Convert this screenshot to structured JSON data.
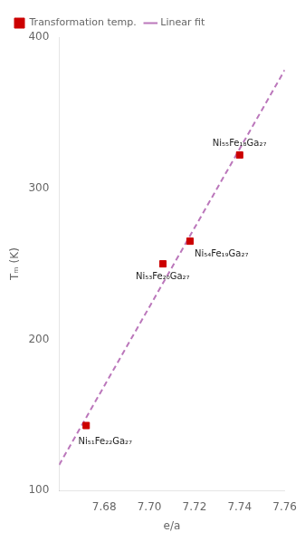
{
  "chart_data": {
    "type": "scatter",
    "xlabel": "e/a",
    "ylabel": "Tₘ (K)",
    "series": [
      {
        "name": "Transformation temp.",
        "type": "scatter",
        "color": "#cc0000",
        "marker": "square",
        "x": [
          7.672,
          7.706,
          7.718,
          7.74
        ],
        "values": [
          143,
          250,
          265,
          322
        ]
      },
      {
        "name": "Linear fit",
        "type": "line",
        "color": "#bb77bb",
        "line_style": "dashed",
        "x": [
          7.66,
          7.76
        ],
        "values": [
          116.912,
          378.317
        ]
      }
    ],
    "annotations": [
      {
        "text": "Ni₅₁Fe₂₂Ga₂₇",
        "x": 7.6685,
        "y": 131
      },
      {
        "text": "Ni₅₃Fe₂₀Ga₂₇",
        "x": 7.694,
        "y": 240
      },
      {
        "text": "Ni₅₄Fe₁₉Ga₂₇",
        "x": 7.72,
        "y": 255
      },
      {
        "text": "Ni₅₅Fe₁₈Ga₂₇",
        "x": 7.728,
        "y": 328
      }
    ],
    "xlim": [
      7.66,
      7.76
    ],
    "xticks": [
      7.68,
      {
        "value": 7.7,
        "label": "7.70"
      },
      7.72,
      7.74,
      7.76
    ],
    "ylim": [
      100,
      400
    ],
    "yticks": [
      100,
      200,
      300,
      400
    ],
    "grid": false,
    "legend": "upper left"
  }
}
